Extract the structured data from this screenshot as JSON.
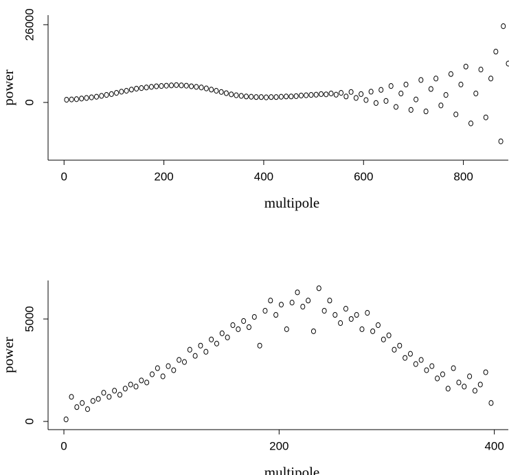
{
  "chart_data": [
    {
      "type": "scatter",
      "xlabel": "multipole",
      "ylabel": "power",
      "color": "#000000",
      "x": [
        5,
        15,
        25,
        35,
        45,
        55,
        65,
        75,
        85,
        95,
        105,
        115,
        125,
        135,
        145,
        155,
        165,
        175,
        185,
        195,
        205,
        215,
        225,
        235,
        245,
        255,
        265,
        275,
        285,
        295,
        305,
        315,
        325,
        335,
        345,
        355,
        365,
        375,
        385,
        395,
        405,
        415,
        425,
        435,
        445,
        455,
        465,
        475,
        485,
        495,
        505,
        515,
        525,
        535,
        545,
        555,
        565,
        575,
        585,
        595,
        605,
        615,
        625,
        635,
        645,
        655,
        665,
        675,
        685,
        695,
        705,
        715,
        725,
        735,
        745,
        755,
        765,
        775,
        785,
        795,
        805,
        815,
        825,
        835,
        845,
        855,
        865,
        875,
        880,
        890
      ],
      "values": [
        900,
        1000,
        1100,
        1300,
        1500,
        1700,
        1900,
        2200,
        2500,
        2800,
        3200,
        3600,
        3900,
        4300,
        4600,
        4800,
        5000,
        5200,
        5400,
        5500,
        5600,
        5700,
        5800,
        5700,
        5600,
        5400,
        5200,
        5000,
        4700,
        4300,
        3900,
        3500,
        3100,
        2700,
        2400,
        2200,
        2000,
        1900,
        1800,
        1800,
        1700,
        1800,
        1800,
        1900,
        2000,
        2000,
        2100,
        2300,
        2400,
        2500,
        2600,
        2800,
        2700,
        3000,
        2600,
        3200,
        2000,
        3500,
        1500,
        2800,
        800,
        3600,
        -200,
        4200,
        500,
        5500,
        -1500,
        3000,
        6000,
        -2500,
        1000,
        7500,
        -3000,
        4500,
        8000,
        -1000,
        2500,
        9500,
        -4000,
        6000,
        12000,
        -7000,
        3000,
        11000,
        -5000,
        8000,
        17000,
        -13000,
        25500,
        13000
      ],
      "xlim": [
        -32,
        890
      ],
      "ylim": [
        -19300,
        29200
      ],
      "xticks": [
        0,
        200,
        400,
        600,
        800
      ],
      "yticks": [
        0,
        26000
      ]
    },
    {
      "type": "scatter",
      "xlabel": "multipole",
      "ylabel": "power",
      "color": "#000000",
      "x": [
        2,
        7,
        12,
        17,
        22,
        27,
        32,
        37,
        42,
        47,
        52,
        57,
        62,
        67,
        72,
        77,
        82,
        87,
        92,
        97,
        102,
        107,
        112,
        117,
        122,
        127,
        132,
        137,
        142,
        147,
        152,
        157,
        162,
        167,
        172,
        177,
        182,
        187,
        192,
        197,
        202,
        207,
        212,
        217,
        222,
        227,
        232,
        237,
        242,
        247,
        252,
        257,
        262,
        267,
        272,
        277,
        282,
        287,
        292,
        297,
        302,
        307,
        312,
        317,
        322,
        327,
        332,
        337,
        342,
        347,
        352,
        357,
        362,
        367,
        372,
        377,
        382,
        387,
        392,
        397
      ],
      "values": [
        100,
        1200,
        700,
        900,
        600,
        1000,
        1100,
        1400,
        1200,
        1500,
        1300,
        1600,
        1800,
        1700,
        2000,
        1900,
        2300,
        2600,
        2200,
        2700,
        2500,
        3000,
        2900,
        3500,
        3200,
        3700,
        3400,
        4000,
        3800,
        4300,
        4100,
        4700,
        4500,
        4900,
        4600,
        5100,
        3700,
        5400,
        5900,
        5200,
        5700,
        4500,
        5800,
        6300,
        5600,
        5900,
        4400,
        6500,
        5400,
        5900,
        5200,
        4800,
        5500,
        5000,
        5200,
        4500,
        5300,
        4400,
        4700,
        4000,
        4200,
        3500,
        3700,
        3100,
        3300,
        2800,
        3000,
        2500,
        2700,
        2100,
        2300,
        1600,
        2600,
        1900,
        1700,
        2200,
        1500,
        1800,
        2400,
        900
      ],
      "xlim": [
        -14.7,
        413
      ],
      "ylim": [
        -400,
        6880
      ],
      "xticks": [
        0,
        200,
        400
      ],
      "yticks": [
        0,
        5000
      ]
    }
  ]
}
